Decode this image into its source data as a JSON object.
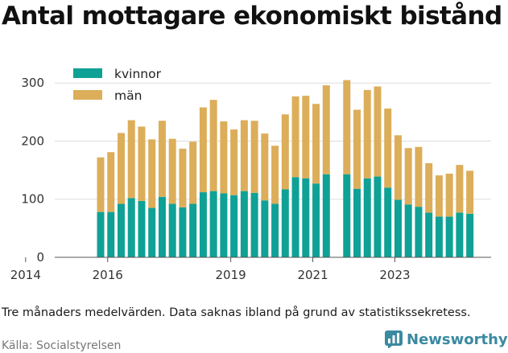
{
  "title": "Antal mottagare ekonomiskt bistånd",
  "note": "Tre månaders medelvärden. Data saknas ibland på grund av statistikssekretess.",
  "source": "Källa: Socialstyrelsen",
  "brand": {
    "name": "Newsworthy"
  },
  "colors": {
    "kvinnor": "#0fa196",
    "man": "#dcae5a",
    "grid": "#dddddd",
    "brand": "#3a8aa1"
  },
  "chart_data": {
    "type": "bar",
    "stacked": true,
    "x_tick_labels": [
      "2014",
      "2016",
      "2019",
      "2021",
      "2023"
    ],
    "y_ticks": [
      0,
      100,
      200,
      300
    ],
    "ylim": [
      0,
      310
    ],
    "legend_position": "top-left",
    "series": [
      {
        "name": "kvinnor",
        "values": [
          78,
          78,
          92,
          102,
          97,
          85,
          104,
          92,
          86,
          92,
          112,
          114,
          110,
          107,
          114,
          111,
          98,
          92,
          117,
          138,
          136,
          127,
          143,
          null,
          143,
          118,
          136,
          139,
          120,
          99,
          91,
          87,
          77,
          70,
          70,
          77,
          75
        ]
      },
      {
        "name": "män",
        "values": [
          94,
          103,
          122,
          134,
          128,
          118,
          131,
          112,
          101,
          107,
          146,
          157,
          124,
          113,
          122,
          124,
          115,
          100,
          129,
          139,
          142,
          137,
          153,
          null,
          162,
          136,
          152,
          155,
          136,
          111,
          97,
          103,
          85,
          71,
          74,
          82,
          74
        ]
      }
    ]
  }
}
